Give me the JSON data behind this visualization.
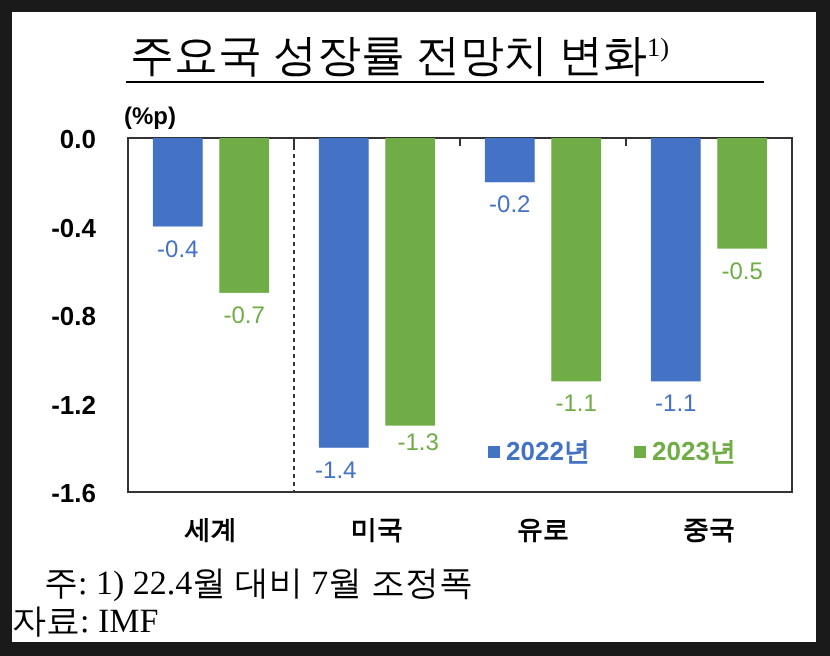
{
  "chart_data": {
    "type": "bar",
    "title": "주요국 성장률 전망치 변화$^{1)}$",
    "ylabel": "(%p)",
    "categories": [
      "세계",
      "미국",
      "유로",
      "중국"
    ],
    "series": [
      {
        "name": "2022년",
        "color": "#4472c4",
        "values": [
          -0.4,
          -1.4,
          -0.2,
          -1.1
        ]
      },
      {
        "name": "2023년",
        "color": "#70ad47",
        "values": [
          -0.7,
          -1.3,
          -1.1,
          -0.5
        ]
      }
    ],
    "ylim": [
      -1.6,
      0
    ],
    "yticks": [
      {
        "value": 0,
        "label": "0.0"
      },
      -0.4,
      -0.8,
      -1.2,
      -1.6
    ],
    "data_labels": true,
    "legend": "bottom right",
    "annotations": [
      "주: 1) 22.4월 대비 7월 조정폭",
      "자료: IMF"
    ]
  }
}
